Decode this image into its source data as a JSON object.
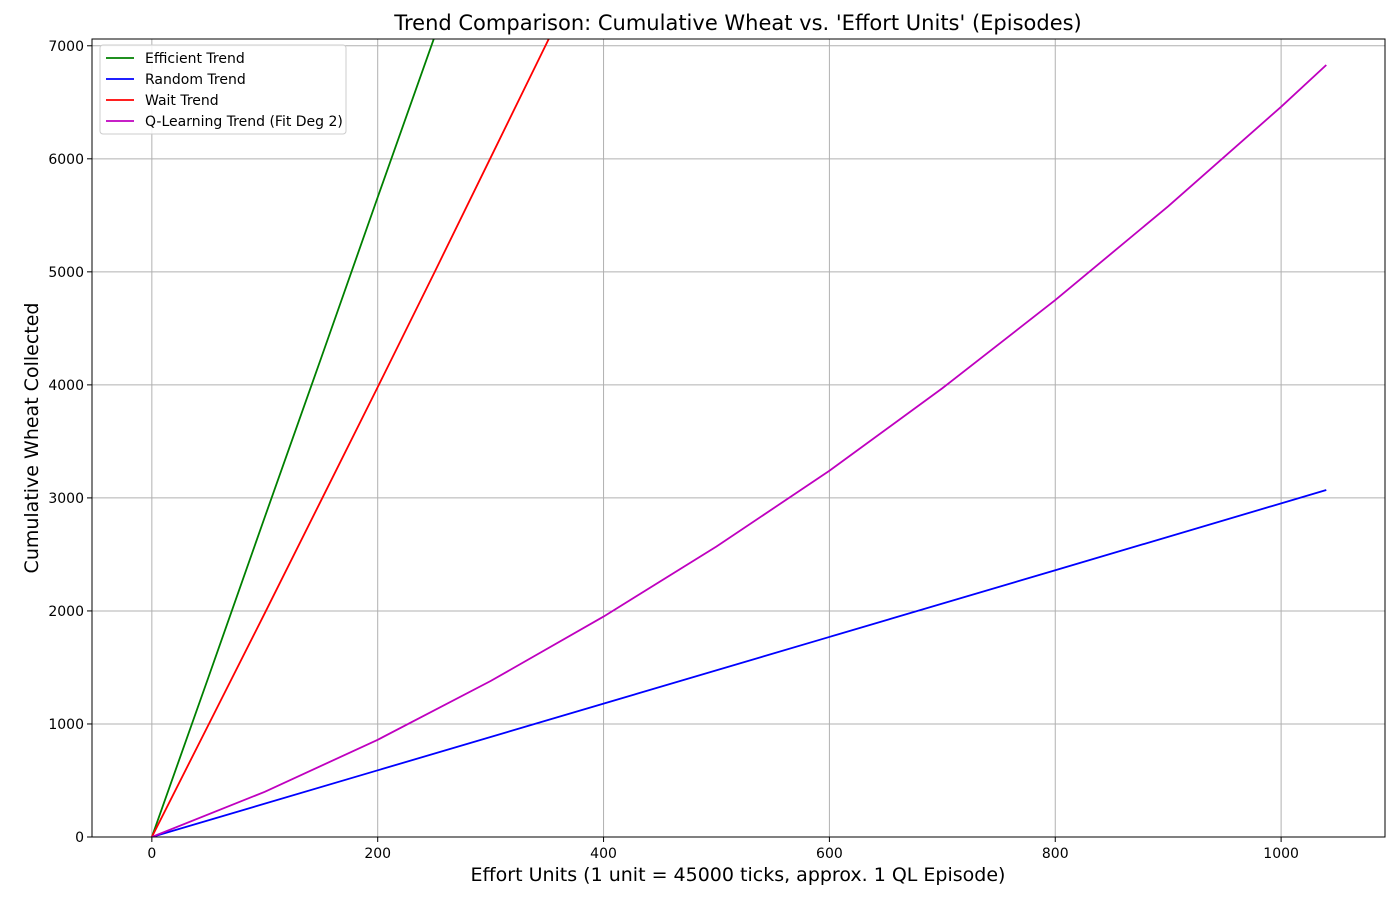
{
  "chart_data": {
    "type": "line",
    "title": "Trend Comparison: Cumulative Wheat vs. 'Effort Units' (Episodes)",
    "xlabel": "Effort Units (1 unit = 45000 ticks, approx. 1 QL Episode)",
    "ylabel": "Cumulative Wheat Collected",
    "xlim": [
      -53,
      1092
    ],
    "ylim": [
      0,
      7060
    ],
    "x_ticks": [
      0,
      200,
      400,
      600,
      800,
      1000
    ],
    "y_ticks": [
      0,
      1000,
      2000,
      3000,
      4000,
      5000,
      6000,
      7000
    ],
    "grid": true,
    "legend_position": "upper left",
    "series": [
      {
        "name": "Efficient Trend",
        "color": "#008000",
        "x": [
          0,
          50,
          100,
          150,
          200,
          250,
          260
        ],
        "y": [
          0,
          1410,
          2830,
          4240,
          5660,
          7070,
          7350
        ]
      },
      {
        "name": "Random Trend",
        "color": "#0000ff",
        "x": [
          0,
          200,
          400,
          600,
          800,
          1040
        ],
        "y": [
          0,
          590,
          1180,
          1770,
          2360,
          3070
        ]
      },
      {
        "name": "Wait Trend",
        "color": "#ff0000",
        "x": [
          0,
          50,
          100,
          150,
          200,
          250,
          300,
          350,
          370
        ],
        "y": [
          0,
          990,
          1980,
          2980,
          3980,
          4990,
          6010,
          7030,
          7440
        ]
      },
      {
        "name": "Q-Learning Trend (Fit Deg 2)",
        "color": "#bf00bf",
        "x": [
          0,
          100,
          200,
          300,
          400,
          500,
          600,
          700,
          800,
          900,
          1000,
          1040
        ],
        "y": [
          0,
          400,
          860,
          1380,
          1950,
          2570,
          3240,
          3970,
          4750,
          5580,
          6460,
          6830
        ]
      }
    ]
  }
}
